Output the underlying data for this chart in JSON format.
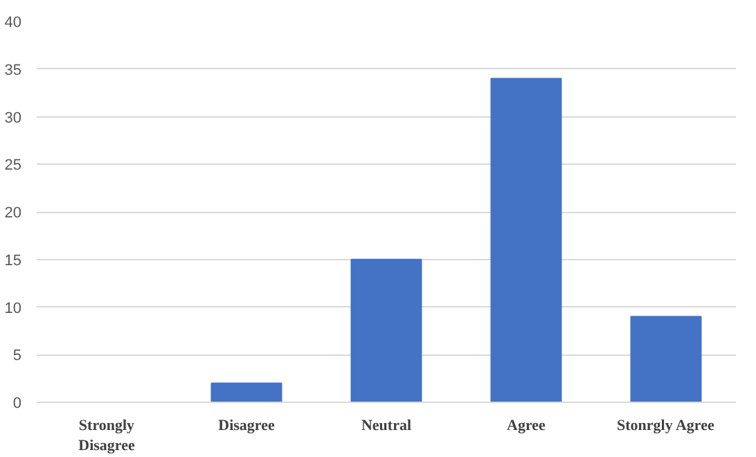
{
  "chart_data": {
    "type": "bar",
    "categories": [
      "Strongly\nDisagree",
      "Disagree",
      "Neutral",
      "Agree",
      "Stonrgly Agree"
    ],
    "values": [
      0,
      2,
      15,
      34,
      9
    ],
    "color": "#4472c4",
    "ylim": [
      0,
      40
    ],
    "yticks": [
      0,
      5,
      10,
      15,
      20,
      25,
      30,
      35,
      40
    ],
    "grid": "y"
  }
}
